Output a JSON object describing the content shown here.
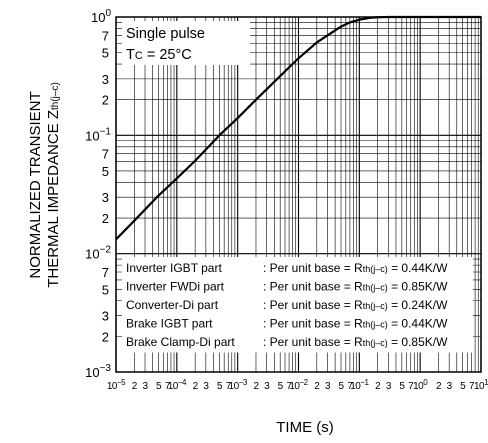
{
  "chart_data": {
    "type": "line",
    "title": "",
    "xlabel": "TIME (s)",
    "ylabel_line1": "NORMALIZED TRANSIENT",
    "ylabel_line2": "THERMAL IMPEDANCE",
    "ylabel_symbol": "Z",
    "ylabel_symbol_sub": "th(j–c)",
    "x_scale": "log",
    "y_scale": "log",
    "xlim": [
      1e-05,
      10
    ],
    "ylim": [
      0.001,
      1
    ],
    "grid": true,
    "y_major_ticks": [
      {
        "value": 1,
        "base": "10",
        "exp": "0"
      },
      {
        "value": 0.1,
        "base": "10",
        "exp": "−1"
      },
      {
        "value": 0.01,
        "base": "10",
        "exp": "−2"
      },
      {
        "value": 0.001,
        "base": "10",
        "exp": "−3"
      }
    ],
    "y_minor_labels": [
      "2",
      "3",
      "5",
      "7"
    ],
    "x_major_ticks": [
      {
        "value": 1e-05,
        "base": "10",
        "exp": "−5"
      },
      {
        "value": 0.0001,
        "base": "10",
        "exp": "−4"
      },
      {
        "value": 0.001,
        "base": "10",
        "exp": "−3"
      },
      {
        "value": 0.01,
        "base": "10",
        "exp": "−2"
      },
      {
        "value": 0.1,
        "base": "10",
        "exp": "−1"
      },
      {
        "value": 1,
        "base": "10",
        "exp": "0"
      },
      {
        "value": 10,
        "base": "10",
        "exp": "1"
      }
    ],
    "x_minor_labels": [
      "2",
      "3",
      "5",
      "7"
    ],
    "series": [
      {
        "x": [
          1e-05,
          2e-05,
          5e-05,
          0.0001,
          0.0002,
          0.0005,
          0.001,
          0.002,
          0.005,
          0.01,
          0.02,
          0.05,
          0.07,
          0.1,
          0.15,
          0.2,
          0.3,
          0.5,
          1,
          2,
          5,
          10
        ],
        "y": [
          0.0132,
          0.019,
          0.031,
          0.0432,
          0.061,
          0.1,
          0.14,
          0.2,
          0.317,
          0.448,
          0.61,
          0.83,
          0.9,
          0.95,
          0.985,
          0.995,
          1,
          1,
          1,
          1,
          1,
          1
        ]
      }
    ],
    "annotations": {
      "line1": "Single pulse",
      "line2_prefix": "T",
      "line2_sub": "C",
      "line2_suffix": " = 25°C"
    },
    "legend_rows": [
      {
        "part": "Inverter IGBT part",
        "prefix": ": Per unit base = R",
        "sub": "th(j–c)",
        "value": " = 0.44K/W"
      },
      {
        "part": "Inverter FWDi part",
        "prefix": ": Per unit base = R",
        "sub": "th(j–c)",
        "value": " = 0.85K/W"
      },
      {
        "part": "Converter-Di part",
        "prefix": ": Per unit base = R",
        "sub": "th(j–c)",
        "value": " = 0.24K/W"
      },
      {
        "part": "Brake IGBT part",
        "prefix": ": Per unit base = R",
        "sub": "th(j–c)",
        "value": " = 0.44K/W"
      },
      {
        "part": "Brake Clamp-Di part",
        "prefix": ": Per unit base = R",
        "sub": "th(j–c)",
        "value": " = 0.85K/W"
      }
    ],
    "legend_placement": "bottom-right",
    "colors": {
      "line": "#000000",
      "grid": "#000000",
      "background": "#ffffff"
    }
  }
}
